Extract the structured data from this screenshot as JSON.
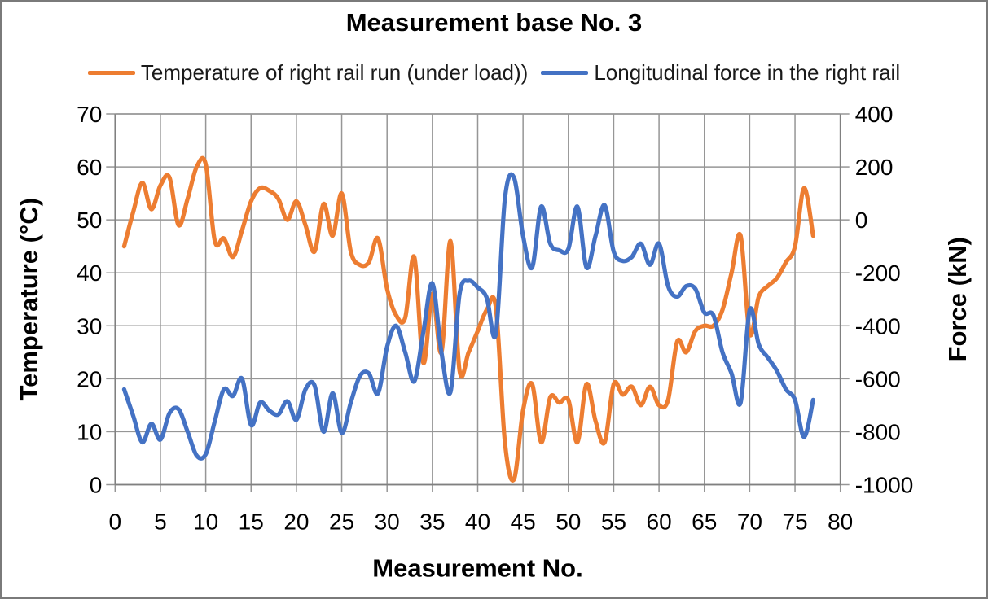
{
  "title": "Measurement base No. 3",
  "legend": [
    {
      "label": "Temperature of right rail run (under load))",
      "color": "#ED7D31"
    },
    {
      "label": "Longitudinal force in the right rail",
      "color": "#4472C4"
    }
  ],
  "axes": {
    "x": {
      "title": "Measurement No.",
      "min": 0,
      "max": 80,
      "ticks": [
        0,
        5,
        10,
        15,
        20,
        25,
        30,
        35,
        40,
        45,
        50,
        55,
        60,
        65,
        70,
        75,
        80
      ]
    },
    "y_left": {
      "title": "Temperature (°C)",
      "min": 0,
      "max": 70,
      "ticks": [
        70,
        60,
        50,
        40,
        30,
        20,
        10,
        0
      ]
    },
    "y_right": {
      "title": "Force (kN)",
      "min": -1000,
      "max": 400,
      "ticks": [
        400,
        200,
        0,
        -200,
        -400,
        -600,
        -800,
        -1000
      ]
    }
  },
  "colors": {
    "grid": "#969696",
    "axis": "#808080",
    "tick_text": "#000000",
    "background": "#ffffff",
    "temperature_series": "#ED7D31",
    "force_series": "#4472C4"
  },
  "chart_data": {
    "type": "line",
    "smooth": true,
    "grid": true,
    "legend_position": "top",
    "title": "Measurement base No. 3",
    "xlabel": "Measurement No.",
    "ylabel_left": "Temperature (°C)",
    "ylabel_right": "Force (kN)",
    "xlim": [
      0,
      80
    ],
    "ylim_left": [
      0,
      70
    ],
    "ylim_right": [
      -1000,
      400
    ],
    "x": [
      1,
      2,
      3,
      4,
      5,
      6,
      7,
      8,
      9,
      10,
      11,
      12,
      13,
      14,
      15,
      16,
      17,
      18,
      19,
      20,
      21,
      22,
      23,
      24,
      25,
      26,
      27,
      28,
      29,
      30,
      31,
      32,
      33,
      34,
      35,
      36,
      37,
      38,
      39,
      40,
      41,
      42,
      43,
      44,
      45,
      46,
      47,
      48,
      49,
      50,
      51,
      52,
      53,
      54,
      55,
      56,
      57,
      58,
      59,
      60,
      61,
      62,
      63,
      64,
      65,
      66,
      67,
      68,
      69,
      70,
      71,
      72,
      73,
      74,
      75,
      76,
      77
    ],
    "series": [
      {
        "name": "Temperature of right rail run (under load))",
        "axis": "left",
        "color": "#ED7D31",
        "values": [
          45,
          51.5,
          57,
          52,
          56.5,
          58,
          49,
          54,
          60,
          60.5,
          46,
          46.5,
          43,
          48,
          53.5,
          56,
          55.5,
          54,
          50,
          53.5,
          49,
          44,
          53,
          47,
          55,
          44,
          41.5,
          42,
          46.5,
          37,
          32,
          31.5,
          43,
          23,
          36,
          25,
          46,
          21.5,
          25,
          29,
          33,
          33.5,
          8,
          1,
          14,
          19,
          8,
          16.5,
          15.5,
          16,
          8,
          19,
          12,
          8,
          19,
          17,
          18.5,
          15,
          18.5,
          15,
          16,
          27,
          25,
          29,
          30,
          30,
          33,
          40,
          47,
          28.5,
          35.5,
          37.5,
          39,
          42,
          45,
          56,
          47
        ]
      },
      {
        "name": "Longitudinal force in the right rail",
        "axis": "right",
        "color": "#4472C4",
        "values": [
          -640,
          -740,
          -840,
          -770,
          -830,
          -730,
          -715,
          -800,
          -890,
          -885,
          -760,
          -640,
          -665,
          -600,
          -775,
          -690,
          -720,
          -735,
          -685,
          -755,
          -640,
          -625,
          -800,
          -655,
          -805,
          -690,
          -590,
          -580,
          -655,
          -480,
          -400,
          -500,
          -610,
          -425,
          -240,
          -500,
          -650,
          -280,
          -230,
          -255,
          -295,
          -430,
          80,
          160,
          -60,
          -180,
          50,
          -90,
          -115,
          -110,
          50,
          -180,
          -60,
          55,
          -120,
          -155,
          -140,
          -90,
          -170,
          -90,
          -250,
          -290,
          -250,
          -260,
          -350,
          -360,
          -500,
          -580,
          -690,
          -340,
          -470,
          -520,
          -570,
          -640,
          -680,
          -820,
          -680
        ]
      }
    ]
  }
}
